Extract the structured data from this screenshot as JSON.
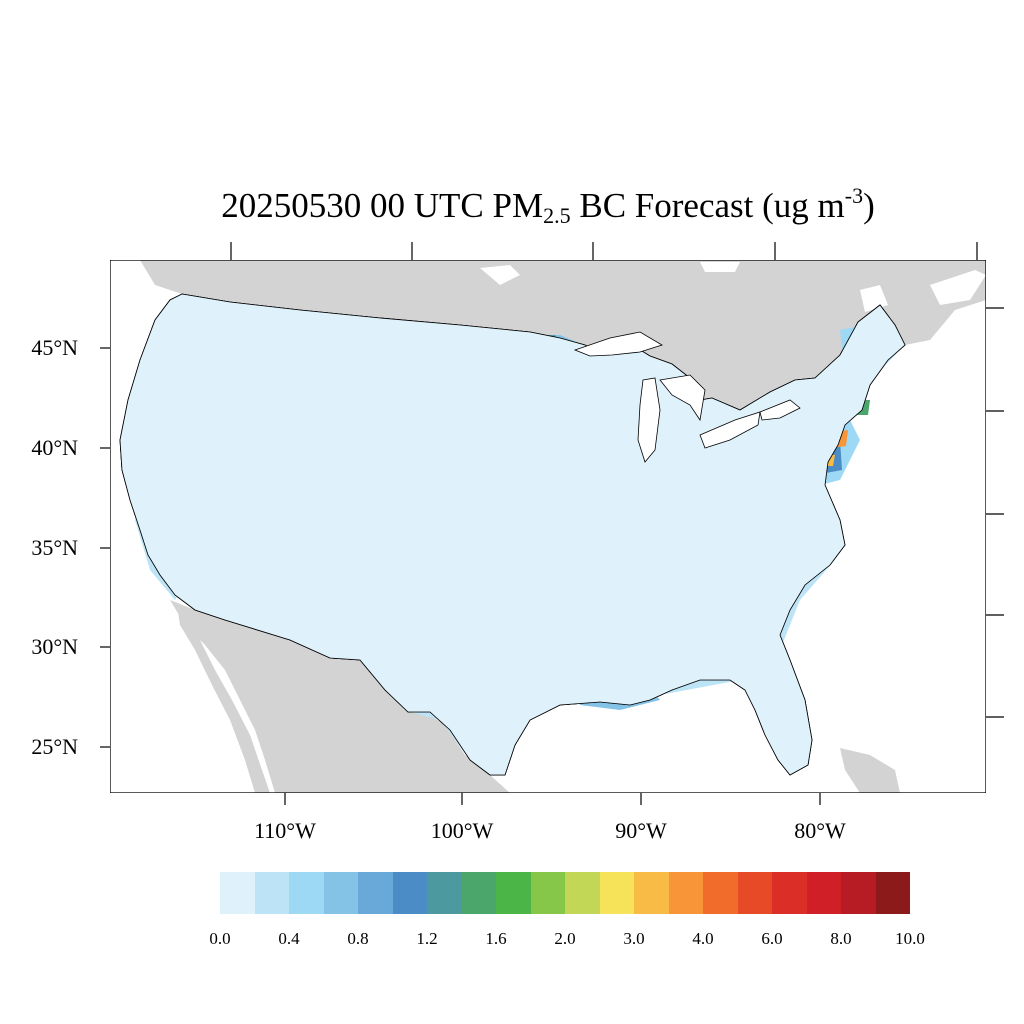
{
  "title": {
    "main": "20250530 00 UTC PM",
    "sub": "2.5",
    "after": " BC Forecast (ug m",
    "sup": "-3",
    "close": ")"
  },
  "map": {
    "region": "CONUS counties",
    "ocean_color": "#ffffff",
    "land_outside_color": "#d3d3d3",
    "border_color": "#000000",
    "lat_labels": [
      "45°N",
      "40°N",
      "35°N",
      "30°N",
      "25°N"
    ],
    "lon_labels": [
      "110°W",
      "100°W",
      "90°W",
      "80°W"
    ]
  },
  "colorbar": {
    "colors": [
      "#dff2fb",
      "#bde4f6",
      "#9dd8f4",
      "#84c2e6",
      "#68a9da",
      "#4b8cc7",
      "#4c9a9f",
      "#4ba66b",
      "#4bb548",
      "#86c74a",
      "#c1d755",
      "#f6e35a",
      "#f7bb46",
      "#f79538",
      "#f16b2a",
      "#e64a27",
      "#db2e26",
      "#d01f27",
      "#b71b23",
      "#8c1a1a"
    ],
    "labels": [
      "0.0",
      "0.4",
      "0.8",
      "1.2",
      "1.6",
      "2.0",
      "3.0",
      "4.0",
      "6.0",
      "8.0",
      "10.0"
    ]
  }
}
